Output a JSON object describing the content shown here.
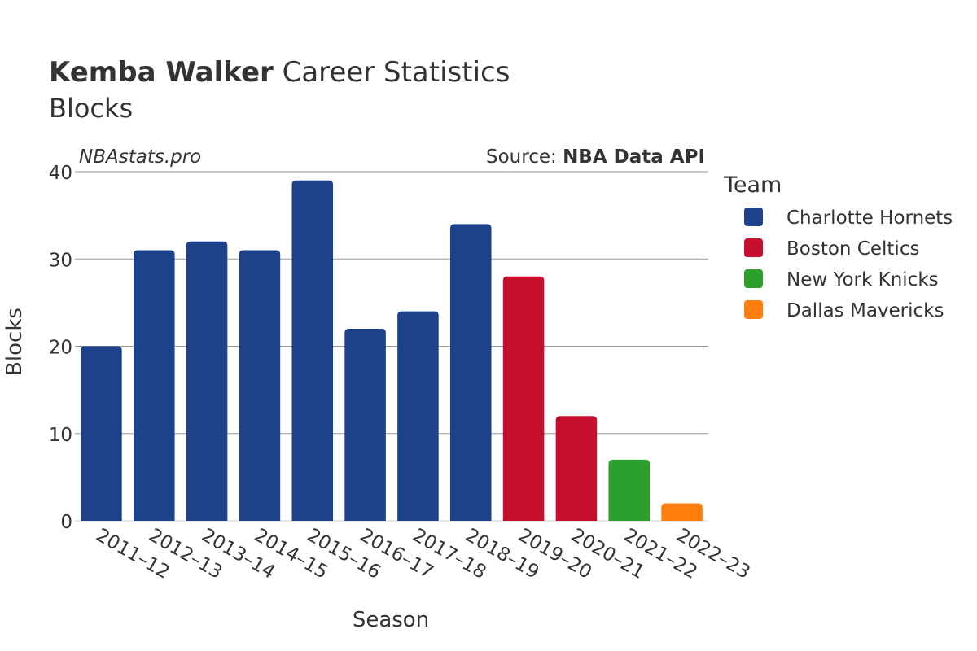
{
  "header": {
    "title_bold": "Kemba Walker",
    "title_rest": " Career Statistics",
    "subtitle": "Blocks",
    "watermark": "NBAstats.pro",
    "source_prefix": "Source: ",
    "source_bold": "NBA Data API"
  },
  "legend": {
    "title": "Team",
    "items": [
      {
        "label": "Charlotte Hornets",
        "color": "#1d428a"
      },
      {
        "label": "Boston Celtics",
        "color": "#c8102e"
      },
      {
        "label": "New York Knicks",
        "color": "#2ca02c"
      },
      {
        "label": "Dallas Mavericks",
        "color": "#ff7f0e"
      }
    ]
  },
  "chart_data": {
    "type": "bar",
    "xlabel": "Season",
    "ylabel": "Blocks",
    "ylim": [
      0,
      40
    ],
    "yticks": [
      0,
      10,
      20,
      30,
      40
    ],
    "grid": true,
    "legend_position": "right",
    "categories": [
      "2011–12",
      "2012–13",
      "2013–14",
      "2014–15",
      "2015–16",
      "2016–17",
      "2017–18",
      "2018–19",
      "2019–20",
      "2020–21",
      "2021–22",
      "2022–23"
    ],
    "values": [
      20,
      31,
      32,
      31,
      39,
      22,
      24,
      34,
      28,
      12,
      7,
      2
    ],
    "teams": [
      "Charlotte Hornets",
      "Charlotte Hornets",
      "Charlotte Hornets",
      "Charlotte Hornets",
      "Charlotte Hornets",
      "Charlotte Hornets",
      "Charlotte Hornets",
      "Charlotte Hornets",
      "Boston Celtics",
      "Boston Celtics",
      "New York Knicks",
      "Dallas Mavericks"
    ]
  }
}
